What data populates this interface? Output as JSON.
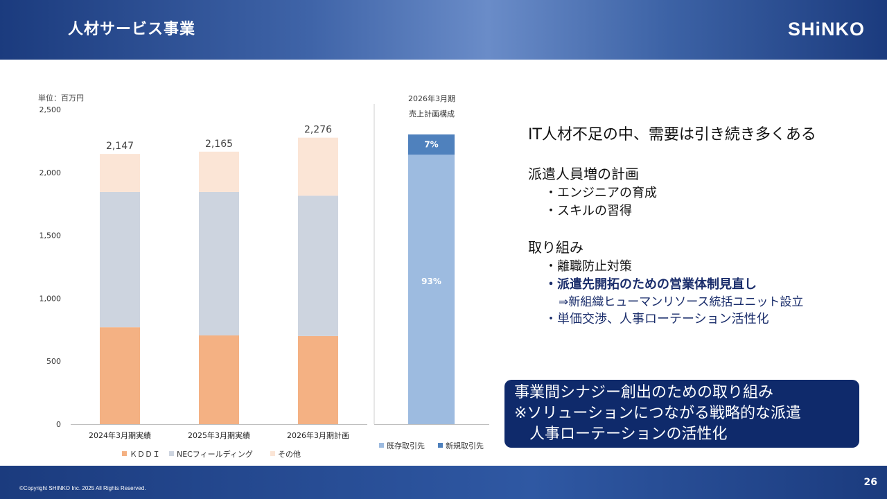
{
  "header": {
    "title": "人材サービス事業",
    "logo": "SHiNKO"
  },
  "chart_data": [
    {
      "type": "bar",
      "stacked": true,
      "unit": "単位：百万円",
      "categories": [
        "2024年3月期実績",
        "2025年3月期実績",
        "2026年3月期計画"
      ],
      "series": [
        {
          "name": "ＫＤＤＩ",
          "values": [
            770,
            705,
            700
          ],
          "color": "#f4b183"
        },
        {
          "name": "NECフィールディング",
          "values": [
            1075,
            1140,
            1115
          ],
          "color": "#cdd4df"
        },
        {
          "name": "その他",
          "values": [
            302,
            320,
            461
          ],
          "color": "#fbe5d6"
        }
      ],
      "totals": [
        "2,147",
        "2,165",
        "2,276"
      ],
      "ylim": [
        0,
        2500
      ],
      "yticks": [
        "0",
        "500",
        "1,000",
        "1,500",
        "2,000",
        "2,500"
      ],
      "legend": "bottom"
    },
    {
      "type": "bar",
      "stacked": true,
      "title_line1": "2026年3月期",
      "title_line2": "売上計画構成",
      "series": [
        {
          "name": "既存取引先",
          "value": 93,
          "label": "93%",
          "color": "#9dbbe0"
        },
        {
          "name": "新規取引先",
          "value": 7,
          "label": "7%",
          "color": "#4f81bd"
        }
      ],
      "legend": "bottom"
    }
  ],
  "right": {
    "headline": "IT人材不足の中、需要は引き続き多くある",
    "plan_title": "派遣人員増の計画",
    "plan_items": [
      "・エンジニアの育成",
      "・スキルの習得"
    ],
    "effort_title": "取り組み",
    "effort_item1": "・離職防止対策",
    "effort_item2": "・派遣先開拓のための営業体制見直し",
    "effort_sub": "⇒新組織ヒューマンリソース統括ユニット設立",
    "effort_item3": "・単価交渉、人事ローテーション活性化"
  },
  "synergy": {
    "line1": "事業間シナジー創出のための取り組み",
    "line2": "※ソリューションにつながる戦略的な派遣",
    "line3": "　人事ローテーションの活性化"
  },
  "footer": {
    "copyright": "©Copyright SHINKO Inc. 2025 All Rights Reserved.",
    "page": "26"
  }
}
